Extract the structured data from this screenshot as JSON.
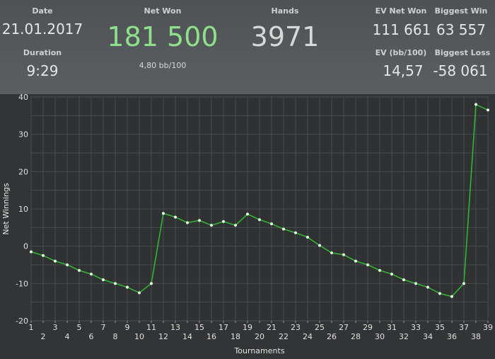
{
  "stats": {
    "date_label": "Date",
    "date_value": "21.01.2017",
    "duration_label": "Duration",
    "duration_value": "9:29",
    "net_won_label": "Net Won",
    "net_won_value": "181 500",
    "net_won_sub": "4,80 bb/100",
    "hands_label": "Hands",
    "hands_value": "3971",
    "ev_net_won_label": "EV Net Won",
    "ev_net_won_value": "111 661",
    "biggest_win_label": "Biggest Win",
    "biggest_win_value": "63 557",
    "ev_bb100_label": "EV (bb/100)",
    "ev_bb100_value": "14,57",
    "biggest_loss_label": "Biggest Loss",
    "biggest_loss_value": "-58 061"
  },
  "colors": {
    "net_won": "#8fe08a",
    "line": "#33b233",
    "point": "#e6ffe6",
    "grid": "#4a4d50",
    "plot_bg": "#2f3133"
  },
  "chart_data": {
    "type": "line",
    "xlabel": "Tournaments",
    "ylabel": "Net Winnings",
    "xlim": [
      1,
      39
    ],
    "ylim": [
      -20,
      40
    ],
    "yticks": [
      -20,
      -10,
      0,
      10,
      20,
      30,
      40
    ],
    "xticks": [
      1,
      2,
      3,
      4,
      5,
      6,
      7,
      8,
      9,
      10,
      11,
      12,
      13,
      14,
      15,
      16,
      17,
      18,
      19,
      20,
      21,
      22,
      23,
      24,
      25,
      26,
      27,
      28,
      29,
      30,
      31,
      32,
      33,
      34,
      35,
      36,
      37,
      38,
      39
    ],
    "grid": true,
    "series": [
      {
        "x": [
          1,
          2,
          3,
          4,
          5,
          6,
          7,
          8,
          9,
          10,
          11,
          12,
          13,
          14,
          15,
          16,
          17,
          18,
          19,
          20,
          21,
          22,
          23,
          24,
          25,
          26,
          27,
          28,
          29,
          30,
          31,
          32,
          33,
          34,
          35,
          36,
          37,
          38,
          39
        ],
        "y": [
          -1.5,
          -2.5,
          -4,
          -5,
          -6.5,
          -7.5,
          -9,
          -10,
          -11,
          -12.5,
          -10,
          8.8,
          7.8,
          6.3,
          6.9,
          5.6,
          6.6,
          5.6,
          8.6,
          7.1,
          6,
          4.6,
          3.6,
          2.4,
          0.2,
          -1.8,
          -2.3,
          -4,
          -5,
          -6.5,
          -7.5,
          -9,
          -10,
          -11,
          -12.7,
          -13.5,
          -10,
          38,
          36.5
        ]
      }
    ]
  }
}
